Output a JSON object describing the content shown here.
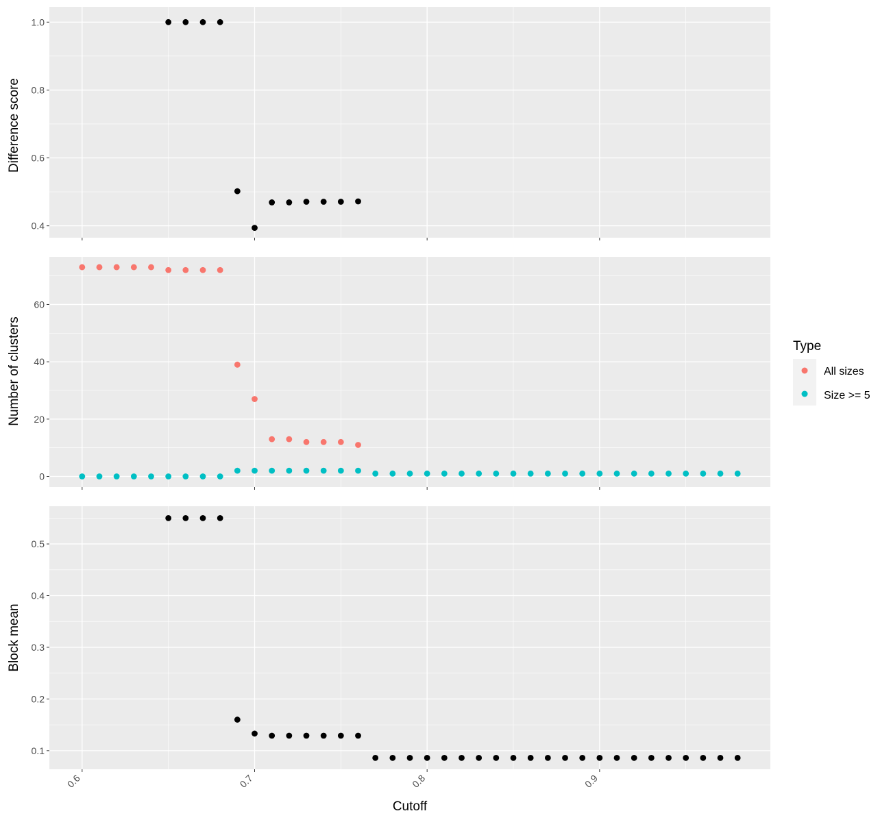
{
  "chart_data": [
    {
      "type": "scatter",
      "ylabel": "Difference score",
      "xlim": [
        0.581,
        0.999
      ],
      "ylim": [
        0.365,
        1.045
      ],
      "y_ticks": [
        0.4,
        0.6,
        0.8,
        1.0
      ],
      "y_tick_labels": [
        "0.4",
        "0.6",
        "0.8",
        "1.0"
      ],
      "grid": true,
      "series": [
        {
          "color": "#000000",
          "x": [
            0.65,
            0.66,
            0.67,
            0.68,
            0.69,
            0.7,
            0.71,
            0.72,
            0.73,
            0.74,
            0.75,
            0.76
          ],
          "y": [
            1.0,
            1.0,
            1.0,
            1.0,
            0.502,
            0.394,
            0.469,
            0.469,
            0.471,
            0.471,
            0.471,
            0.472
          ]
        }
      ]
    },
    {
      "type": "scatter",
      "ylabel": "Number of clusters",
      "xlim": [
        0.581,
        0.999
      ],
      "ylim": [
        -3.7,
        76.6
      ],
      "y_ticks": [
        0,
        20,
        40,
        60
      ],
      "y_tick_labels": [
        "0",
        "20",
        "40",
        "60"
      ],
      "grid": true,
      "legend": {
        "title": "Type",
        "position": "right",
        "entries": [
          {
            "label": "All sizes",
            "color": "#F8766D"
          },
          {
            "label": "Size >= 5",
            "color": "#00BFC4"
          }
        ]
      },
      "series": [
        {
          "name": "All sizes",
          "color": "#F8766D",
          "x": [
            0.6,
            0.61,
            0.62,
            0.63,
            0.64,
            0.65,
            0.66,
            0.67,
            0.68,
            0.69,
            0.7,
            0.71,
            0.72,
            0.73,
            0.74,
            0.75,
            0.76
          ],
          "y": [
            73,
            73,
            73,
            73,
            73,
            72,
            72,
            72,
            72,
            39,
            27,
            13,
            13,
            12,
            12,
            12,
            11
          ]
        },
        {
          "name": "Size >= 5",
          "color": "#00BFC4",
          "x": [
            0.6,
            0.61,
            0.62,
            0.63,
            0.64,
            0.65,
            0.66,
            0.67,
            0.68,
            0.69,
            0.7,
            0.71,
            0.72,
            0.73,
            0.74,
            0.75,
            0.76,
            0.77,
            0.78,
            0.79,
            0.8,
            0.81,
            0.82,
            0.83,
            0.84,
            0.85,
            0.86,
            0.87,
            0.88,
            0.89,
            0.9,
            0.91,
            0.92,
            0.93,
            0.94,
            0.95,
            0.96,
            0.97,
            0.98
          ],
          "y": [
            0,
            0,
            0,
            0,
            0,
            0,
            0,
            0,
            0,
            2,
            2,
            2,
            2,
            2,
            2,
            2,
            2,
            1,
            1,
            1,
            1,
            1,
            1,
            1,
            1,
            1,
            1,
            1,
            1,
            1,
            1,
            1,
            1,
            1,
            1,
            1,
            1,
            1,
            1
          ]
        }
      ]
    },
    {
      "type": "scatter",
      "xlabel": "Cutoff",
      "ylabel": "Block mean",
      "xlim": [
        0.581,
        0.999
      ],
      "ylim": [
        0.064,
        0.573
      ],
      "x_ticks": [
        0.6,
        0.7,
        0.8,
        0.9
      ],
      "x_tick_labels": [
        "0.6",
        "0.7",
        "0.8",
        "0.9"
      ],
      "y_ticks": [
        0.1,
        0.2,
        0.3,
        0.4,
        0.5
      ],
      "y_tick_labels": [
        "0.1",
        "0.2",
        "0.3",
        "0.4",
        "0.5"
      ],
      "grid": true,
      "series": [
        {
          "color": "#000000",
          "x": [
            0.65,
            0.66,
            0.67,
            0.68,
            0.69,
            0.7,
            0.71,
            0.72,
            0.73,
            0.74,
            0.75,
            0.76,
            0.77,
            0.78,
            0.79,
            0.8,
            0.81,
            0.82,
            0.83,
            0.84,
            0.85,
            0.86,
            0.87,
            0.88,
            0.89,
            0.9,
            0.91,
            0.92,
            0.93,
            0.94,
            0.95,
            0.96,
            0.97,
            0.98
          ],
          "y": [
            0.55,
            0.55,
            0.55,
            0.55,
            0.16,
            0.133,
            0.129,
            0.129,
            0.129,
            0.129,
            0.129,
            0.129,
            0.086,
            0.086,
            0.086,
            0.086,
            0.086,
            0.086,
            0.086,
            0.086,
            0.086,
            0.086,
            0.086,
            0.086,
            0.086,
            0.086,
            0.086,
            0.086,
            0.086,
            0.086,
            0.086,
            0.086,
            0.086,
            0.086
          ]
        }
      ]
    }
  ],
  "colors": {
    "panel_background": "#EBEBEB",
    "grid_major": "#FFFFFF",
    "tick_text": "#4D4D4D",
    "tick_mark": "#333333"
  }
}
